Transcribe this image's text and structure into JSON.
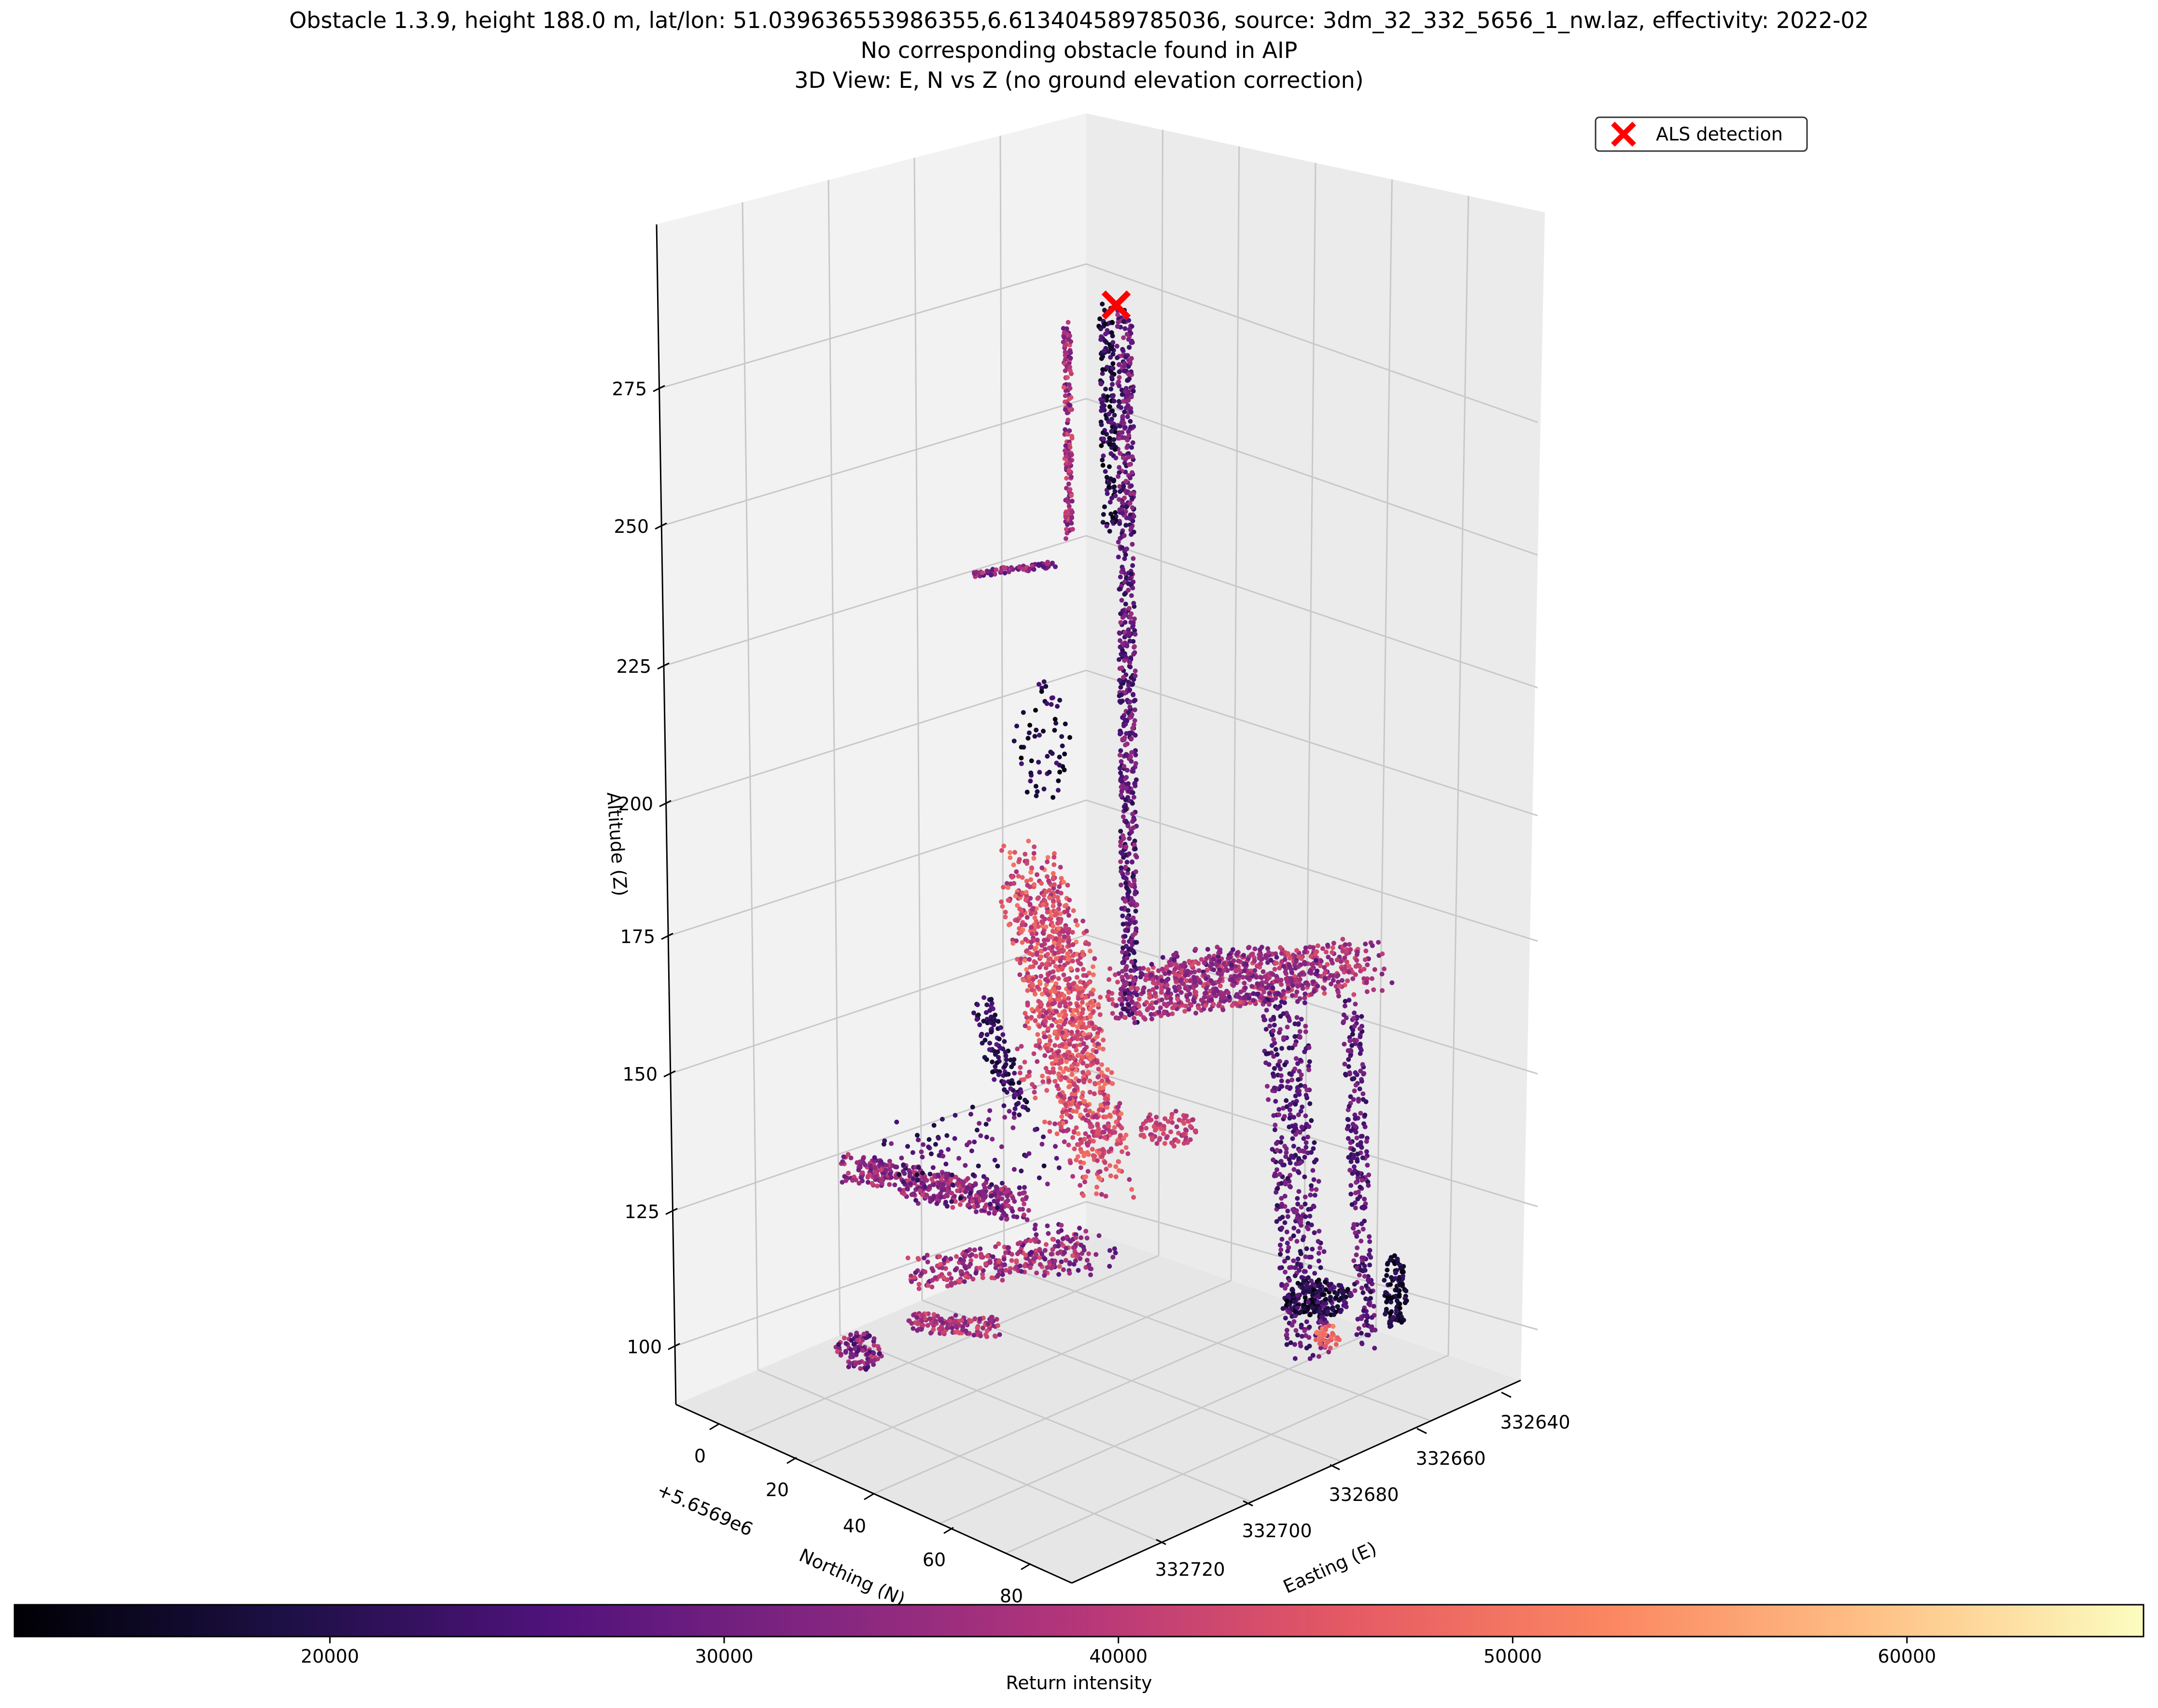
{
  "figure": {
    "title_lines": [
      "Obstacle 1.3.9, height 188.0 m, lat/lon: 51.039636553986355,6.613404589785036, source: 3dm_32_332_5656_1_nw.laz, effectivity: 2022-02",
      "No corresponding obstacle found in AIP",
      "3D View: E, N vs Z (no ground elevation correction)"
    ]
  },
  "chart_data": {
    "type": "scatter",
    "projection": "3d",
    "axes": {
      "x": {
        "label": "Easting (E)",
        "ticks": [
          "332640",
          "332660",
          "332680",
          "332700",
          "332720"
        ]
      },
      "y": {
        "label": "Northing (N)",
        "ticks": [
          "0",
          "20",
          "40",
          "60",
          "80"
        ],
        "offset_label": "+5.6569e6"
      },
      "z": {
        "label": "Altitude (Z)",
        "ticks": [
          "100",
          "125",
          "150",
          "175",
          "200",
          "225",
          "250",
          "275"
        ]
      }
    },
    "legend": {
      "entries": [
        "ALS detection"
      ],
      "position": "top-right",
      "marker_color": "#ff0000",
      "marker": "x"
    },
    "colorbar": {
      "label": "Return intensity",
      "ticks": [
        "20000",
        "30000",
        "40000",
        "50000",
        "60000"
      ],
      "range": [
        12000,
        66000
      ],
      "colormap": "magma",
      "colors": [
        "#000004",
        "#1c1044",
        "#4f127b",
        "#812581",
        "#b5367a",
        "#e55964",
        "#fb8761",
        "#fec287",
        "#fcfdbf"
      ]
    },
    "detection": {
      "label": "ALS detection",
      "altitude": 288
    }
  }
}
